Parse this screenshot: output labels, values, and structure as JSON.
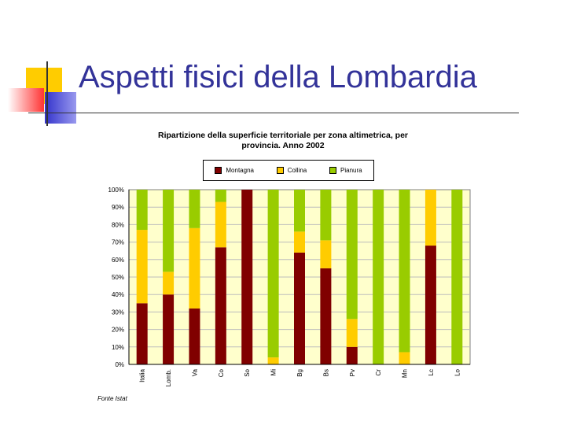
{
  "slide": {
    "title": "Aspetti fisici della Lombardia"
  },
  "colors": {
    "title": "#333399",
    "deco_yellow": "#ffcc00",
    "deco_red": "#ff3333",
    "deco_blue": "#3333cc",
    "plot_background": "#ffffcc"
  },
  "chart_data": {
    "type": "bar",
    "stacked": true,
    "percent": true,
    "title_line1": "Ripartizione della superficie territoriale per zona altimetrica, per",
    "title_line2": "provincia. Anno 2002",
    "categories": [
      "Italia",
      "Lomb.",
      "Va",
      "Co",
      "So",
      "Mi",
      "Bg",
      "Bs",
      "Pv",
      "Cr",
      "Mn",
      "Lc",
      "Lo"
    ],
    "series": [
      {
        "name": "Montagna",
        "color": "#800000",
        "values": [
          35,
          40,
          32,
          67,
          100,
          0,
          64,
          55,
          10,
          0,
          0,
          68,
          0
        ]
      },
      {
        "name": "Collina",
        "color": "#ffcc00",
        "values": [
          42,
          13,
          46,
          26,
          0,
          4,
          12,
          16,
          16,
          0,
          7,
          32,
          0
        ]
      },
      {
        "name": "Pianura",
        "color": "#99cc00",
        "values": [
          23,
          47,
          22,
          7,
          0,
          96,
          24,
          29,
          74,
          100,
          93,
          0,
          100
        ]
      }
    ],
    "yticks": [
      "0%",
      "10%",
      "20%",
      "30%",
      "40%",
      "50%",
      "60%",
      "70%",
      "80%",
      "90%",
      "100%"
    ],
    "ylim": [
      0,
      100
    ],
    "grid": true,
    "legend_position": "top",
    "source": "Fonte Istat"
  }
}
